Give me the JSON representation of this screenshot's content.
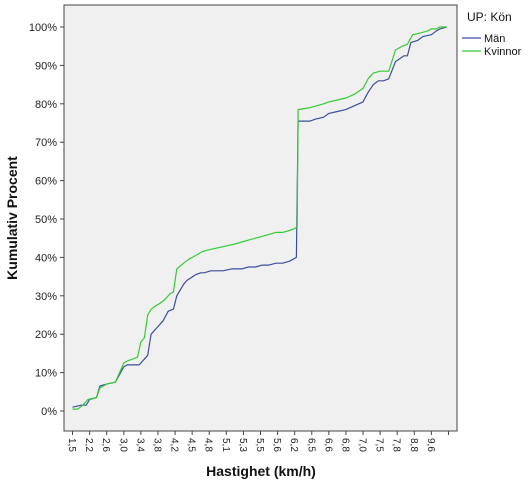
{
  "chart_data": {
    "type": "line",
    "xlabel": "Hastighet (km/h)",
    "ylabel": "Kumulativ Procent",
    "legend_title": "UP: Kön",
    "legend_position": "right",
    "ylim": [
      0,
      100
    ],
    "y_ticks": [
      "0%",
      "10%",
      "20%",
      "30%",
      "40%",
      "50%",
      "60%",
      "70%",
      "80%",
      "90%",
      "100%"
    ],
    "x_tick_labels": [
      "1,5",
      "2,2",
      "2,6",
      "3,0",
      "3,4",
      "3,8",
      "4,2",
      "4,5",
      "4,8",
      "5,1",
      "5,3",
      "5,5",
      "5,6",
      "6,2",
      "6,5",
      "6,6",
      "6,8",
      "7,0",
      "7,5",
      "7,8",
      "8,8",
      "9,6"
    ],
    "x_categories": 23,
    "grid": false,
    "background": "#f0f0f0",
    "colors": {
      "man": "#3a4fa0",
      "kvinnor": "#33cc33"
    },
    "series": [
      {
        "name": "Män",
        "x": [
          0.0,
          0.5,
          0.8,
          1.0,
          1.4,
          1.6,
          2.0,
          2.5,
          3.0,
          3.2,
          3.4,
          3.6,
          3.9,
          4.2,
          4.4,
          4.6,
          4.9,
          5.1,
          5.3,
          5.6,
          5.9,
          6.1,
          6.5,
          6.7,
          7.2,
          7.5,
          7.7,
          8.1,
          8.4,
          8.8,
          9.3,
          9.6,
          9.9,
          10.3,
          10.7,
          11.1,
          11.5,
          11.9,
          12.3,
          12.7,
          12.9,
          13.1,
          13.2,
          13.9,
          14.2,
          14.7,
          15.0,
          15.5,
          16.0,
          16.5,
          17.0,
          17.3,
          17.6,
          17.9,
          18.2,
          18.5,
          18.9,
          19.4,
          19.6,
          19.8,
          20.2,
          20.5,
          21.0,
          21.3,
          21.5,
          21.9
        ],
        "y": [
          1.0,
          1.5,
          1.5,
          3.0,
          3.5,
          6.5,
          7.0,
          7.5,
          11.5,
          12.0,
          12.0,
          12.0,
          12.0,
          13.5,
          14.5,
          20.0,
          21.5,
          22.5,
          23.5,
          26.0,
          26.5,
          30.0,
          33.0,
          34.0,
          35.5,
          36.0,
          36.0,
          36.5,
          36.5,
          36.5,
          37.0,
          37.0,
          37.0,
          37.5,
          37.5,
          38.0,
          38.0,
          38.5,
          38.5,
          39.0,
          39.5,
          40.0,
          75.5,
          75.5,
          76.0,
          76.5,
          77.5,
          78.0,
          78.5,
          79.5,
          80.5,
          83.0,
          85.0,
          86.0,
          86.0,
          86.5,
          91.0,
          92.5,
          92.5,
          96.0,
          96.5,
          97.5,
          98.0,
          99.0,
          99.5,
          100.0
        ]
      },
      {
        "name": "Kvinnor",
        "x": [
          0.0,
          0.3,
          0.6,
          0.9,
          1.4,
          1.6,
          2.0,
          2.5,
          3.0,
          3.2,
          3.5,
          3.8,
          4.0,
          4.2,
          4.4,
          4.6,
          4.9,
          5.1,
          5.4,
          5.7,
          5.9,
          6.1,
          6.5,
          6.8,
          7.2,
          7.6,
          8.0,
          8.5,
          9.0,
          9.5,
          9.9,
          10.3,
          10.7,
          11.1,
          11.5,
          11.9,
          12.3,
          12.7,
          13.0,
          13.15,
          13.2,
          13.9,
          14.3,
          14.7,
          15.0,
          15.5,
          16.0,
          16.5,
          17.0,
          17.3,
          17.6,
          18.0,
          18.5,
          18.9,
          19.3,
          19.6,
          19.9,
          20.4,
          20.8,
          21.0,
          21.3,
          21.5,
          21.9
        ],
        "y": [
          0.5,
          0.5,
          1.5,
          3.0,
          3.5,
          6.0,
          7.0,
          7.5,
          12.5,
          13.0,
          13.5,
          14.0,
          18.0,
          19.0,
          25.0,
          26.5,
          27.5,
          28.0,
          29.0,
          30.5,
          31.0,
          37.0,
          38.5,
          39.5,
          40.5,
          41.5,
          42.0,
          42.5,
          43.0,
          43.5,
          44.0,
          44.5,
          45.0,
          45.5,
          46.0,
          46.5,
          46.5,
          47.0,
          47.5,
          48.0,
          78.5,
          79.0,
          79.5,
          80.0,
          80.5,
          81.0,
          81.5,
          82.5,
          84.0,
          86.5,
          88.0,
          88.5,
          88.5,
          94.0,
          95.0,
          95.5,
          98.0,
          98.5,
          99.0,
          99.5,
          99.5,
          100.0,
          100.0
        ]
      }
    ]
  }
}
